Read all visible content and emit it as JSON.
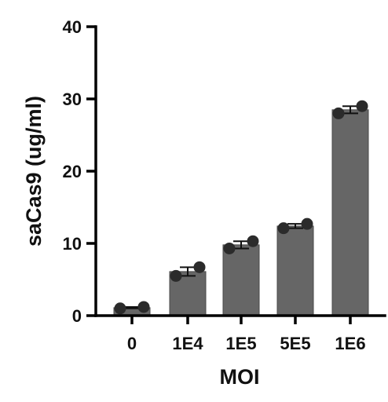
{
  "chart_data": {
    "type": "bar",
    "title": "",
    "xlabel": "MOI",
    "ylabel": "saCas9 (ug/ml)",
    "categories": [
      "0",
      "1E4",
      "1E5",
      "5E5",
      "1E6"
    ],
    "values": [
      1.1,
      6.1,
      9.8,
      12.4,
      28.5
    ],
    "errors": [
      0.1,
      0.6,
      0.5,
      0.3,
      0.5
    ],
    "points": [
      [
        1.0,
        1.2
      ],
      [
        5.5,
        6.7
      ],
      [
        9.3,
        10.3
      ],
      [
        12.1,
        12.7
      ],
      [
        28.0,
        29.0
      ]
    ],
    "ylim": [
      0,
      40
    ],
    "yticks": [
      0,
      10,
      20,
      30,
      40
    ],
    "grid": false,
    "colors": {
      "bar": "#666666",
      "point": "#2b2b2b",
      "axis": "#000000"
    }
  }
}
